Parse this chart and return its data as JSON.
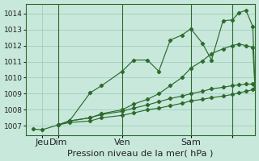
{
  "title": "Pression niveau de la mer( hPa )",
  "bg_color": "#c8e8dc",
  "grid_color": "#98c8b4",
  "line_color": "#2d6b2d",
  "ylim": [
    1006.4,
    1014.6
  ],
  "yticks": [
    1007,
    1008,
    1009,
    1010,
    1011,
    1012,
    1013,
    1014
  ],
  "xlim": [
    0,
    100
  ],
  "vline_positions": [
    14,
    42,
    72,
    90
  ],
  "xtick_positions": [
    7,
    14,
    42,
    72,
    90
  ],
  "xtick_labels": [
    "Jeu",
    "Dim",
    "Ven",
    "Sam",
    ""
  ],
  "series": [
    {
      "x": [
        3,
        7,
        14,
        19,
        28,
        33,
        42,
        47,
        53,
        58,
        63,
        68,
        72,
        77,
        81,
        86,
        90,
        93,
        96,
        99,
        100
      ],
      "y": [
        1006.8,
        1006.75,
        1007.05,
        1007.3,
        1009.05,
        1009.5,
        1010.4,
        1011.1,
        1011.1,
        1010.4,
        1012.35,
        1012.65,
        1013.05,
        1012.15,
        1011.1,
        1013.55,
        1013.6,
        1014.05,
        1014.2,
        1013.2,
        1009.3
      ]
    },
    {
      "x": [
        14,
        19,
        28,
        33,
        42,
        47,
        53,
        58,
        63,
        68,
        72,
        77,
        81,
        86,
        90,
        93,
        96,
        99,
        100
      ],
      "y": [
        1007.05,
        1007.3,
        1007.5,
        1007.75,
        1008.0,
        1008.35,
        1008.65,
        1009.0,
        1009.5,
        1010.0,
        1010.6,
        1011.05,
        1011.5,
        1011.8,
        1012.0,
        1012.1,
        1012.0,
        1011.9,
        1009.3
      ]
    },
    {
      "x": [
        14,
        19,
        28,
        33,
        42,
        47,
        53,
        58,
        63,
        68,
        72,
        77,
        81,
        86,
        90,
        93,
        96,
        99,
        100
      ],
      "y": [
        1007.05,
        1007.3,
        1007.5,
        1007.7,
        1007.9,
        1008.1,
        1008.3,
        1008.5,
        1008.7,
        1008.85,
        1009.0,
        1009.15,
        1009.3,
        1009.4,
        1009.5,
        1009.55,
        1009.6,
        1009.6,
        1009.3
      ]
    },
    {
      "x": [
        14,
        19,
        28,
        33,
        42,
        47,
        53,
        58,
        63,
        68,
        72,
        77,
        81,
        86,
        90,
        93,
        96,
        99,
        100
      ],
      "y": [
        1007.05,
        1007.2,
        1007.3,
        1007.5,
        1007.65,
        1007.8,
        1008.0,
        1008.1,
        1008.25,
        1008.4,
        1008.55,
        1008.65,
        1008.75,
        1008.85,
        1008.95,
        1009.05,
        1009.15,
        1009.25,
        1009.3
      ]
    }
  ],
  "tick_fontsize": 6.5,
  "label_fontsize": 8,
  "markersize": 2.2
}
